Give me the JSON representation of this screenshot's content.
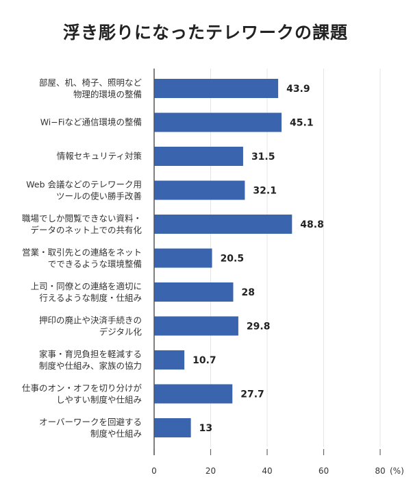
{
  "chart_data": {
    "type": "bar",
    "orientation": "horizontal",
    "title": "浮き彫りになったテレワークの課題",
    "categories": [
      [
        "部屋、机、椅子、照明など",
        "物理的環境の整備"
      ],
      [
        "Wi−Fiなど通信環境の整備"
      ],
      [
        "情報セキュリティ対策"
      ],
      [
        "Web 会議などのテレワーク用",
        "ツールの使い勝手改善"
      ],
      [
        "職場でしか閲覧できない資料・",
        "データのネット上での共有化"
      ],
      [
        "営業・取引先との連絡をネット",
        "でできるような環境整備"
      ],
      [
        "上司・同僚との連絡を適切に",
        "行えるような制度・仕組み"
      ],
      [
        "押印の廃止や決済手続きの",
        "デジタル化"
      ],
      [
        "家事・育児負担を軽減する",
        "制度や仕組み、家族の協力"
      ],
      [
        "仕事のオン・オフを切り分けが",
        "しやすい制度や仕組み"
      ],
      [
        "オーバーワークを回避する",
        "制度や仕組み"
      ]
    ],
    "values": [
      43.9,
      45.1,
      31.5,
      32.1,
      48.8,
      20.5,
      28,
      29.8,
      10.7,
      27.7,
      13
    ],
    "value_labels": [
      "43.9",
      "45.1",
      "31.5",
      "32.1",
      "48.8",
      "20.5",
      "28",
      "29.8",
      "10.7",
      "27.7",
      "13"
    ],
    "xlim": [
      0,
      80
    ],
    "xticks": [
      "0",
      "20",
      "40",
      "60",
      "80"
    ],
    "xunit": "(%)",
    "bar_color": "#3a64ae",
    "grid": true
  }
}
